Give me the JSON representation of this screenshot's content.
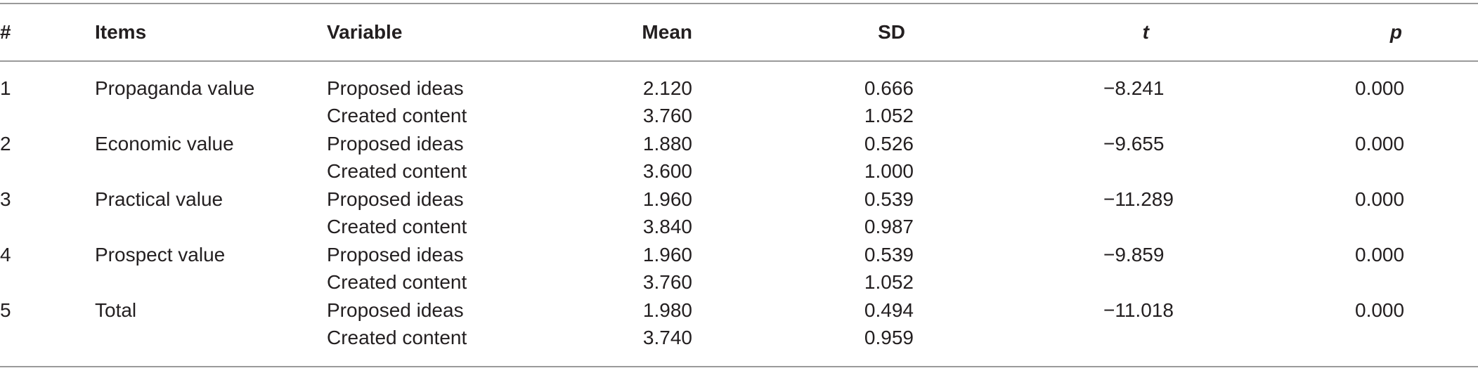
{
  "table": {
    "headers": {
      "num": "#",
      "items": "Items",
      "variable": "Variable",
      "mean": "Mean",
      "sd": "SD",
      "t": "t",
      "p": "p"
    },
    "rows": [
      {
        "num": "1",
        "item": "Propaganda value",
        "variable": "Proposed ideas",
        "mean": "2.120",
        "sd": "0.666",
        "t": "−8.241",
        "p": "0.000"
      },
      {
        "num": "",
        "item": "",
        "variable": "Created content",
        "mean": "3.760",
        "sd": "1.052",
        "t": "",
        "p": ""
      },
      {
        "num": "2",
        "item": "Economic value",
        "variable": "Proposed ideas",
        "mean": "1.880",
        "sd": "0.526",
        "t": "−9.655",
        "p": "0.000"
      },
      {
        "num": "",
        "item": "",
        "variable": "Created content",
        "mean": "3.600",
        "sd": "1.000",
        "t": "",
        "p": ""
      },
      {
        "num": "3",
        "item": "Practical value",
        "variable": "Proposed ideas",
        "mean": "1.960",
        "sd": "0.539",
        "t": "−11.289",
        "p": "0.000"
      },
      {
        "num": "",
        "item": "",
        "variable": "Created content",
        "mean": "3.840",
        "sd": "0.987",
        "t": "",
        "p": ""
      },
      {
        "num": "4",
        "item": "Prospect value",
        "variable": "Proposed ideas",
        "mean": "1.960",
        "sd": "0.539",
        "t": "−9.859",
        "p": "0.000"
      },
      {
        "num": "",
        "item": "",
        "variable": "Created content",
        "mean": "3.760",
        "sd": "1.052",
        "t": "",
        "p": ""
      },
      {
        "num": "5",
        "item": "Total",
        "variable": "Proposed ideas",
        "mean": "1.980",
        "sd": "0.494",
        "t": "−11.018",
        "p": "0.000"
      },
      {
        "num": "",
        "item": "",
        "variable": "Created content",
        "mean": "3.740",
        "sd": "0.959",
        "t": "",
        "p": ""
      }
    ]
  }
}
